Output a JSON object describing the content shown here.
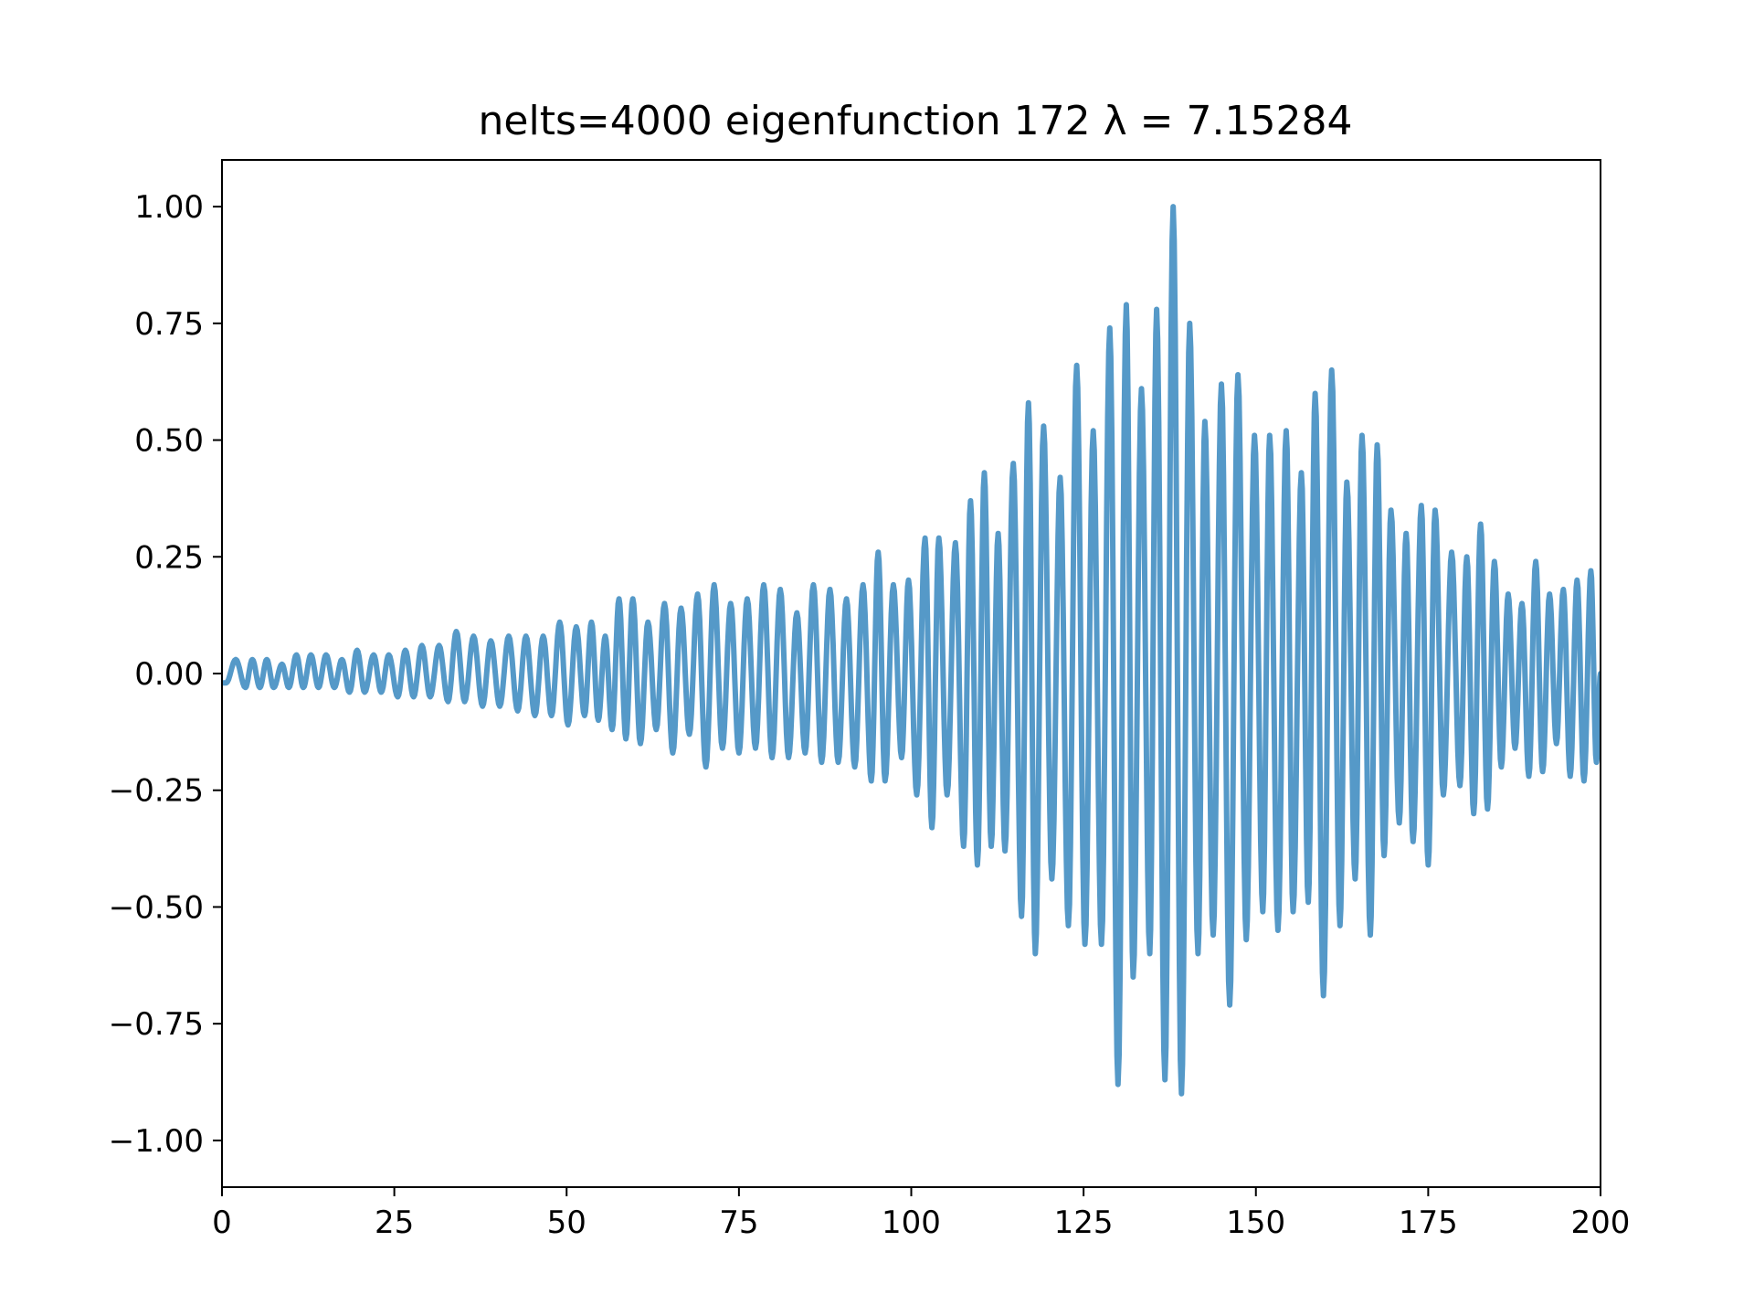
{
  "chart_data": {
    "type": "line",
    "title": "nelts=4000  eigenfunction 172  λ = 7.15284",
    "xlabel": "",
    "ylabel": "",
    "xlim": [
      0,
      200
    ],
    "ylim": [
      -1.1,
      1.1
    ],
    "grid": false,
    "line_color": "#5599c8",
    "xticks": [
      0,
      25,
      50,
      75,
      100,
      125,
      150,
      175,
      200
    ],
    "xtick_labels": [
      "0",
      "25",
      "50",
      "75",
      "100",
      "125",
      "150",
      "175",
      "200"
    ],
    "yticks": [
      1.0,
      0.75,
      0.5,
      0.25,
      0.0,
      -0.25,
      -0.5,
      -0.75,
      -1.0
    ],
    "ytick_labels": [
      "1.00",
      "0.75",
      "0.50",
      "0.25",
      "0.00",
      "−0.25",
      "−0.50",
      "−0.75",
      "−1.00"
    ],
    "peaks": [
      [
        0.0,
        -0.02
      ],
      [
        0.6,
        -0.02
      ],
      [
        2.0,
        0.03
      ],
      [
        3.4,
        -0.03
      ],
      [
        4.4,
        0.03
      ],
      [
        5.5,
        -0.03
      ],
      [
        6.5,
        0.03
      ],
      [
        7.5,
        -0.03
      ],
      [
        8.7,
        0.02
      ],
      [
        9.7,
        -0.03
      ],
      [
        10.8,
        0.04
      ],
      [
        11.8,
        -0.03
      ],
      [
        12.9,
        0.04
      ],
      [
        14.0,
        -0.03
      ],
      [
        15.1,
        0.04
      ],
      [
        16.3,
        -0.03
      ],
      [
        17.4,
        0.03
      ],
      [
        18.5,
        -0.04
      ],
      [
        19.6,
        0.05
      ],
      [
        20.7,
        -0.04
      ],
      [
        22.0,
        0.04
      ],
      [
        23.1,
        -0.04
      ],
      [
        24.2,
        0.04
      ],
      [
        25.5,
        -0.05
      ],
      [
        26.6,
        0.05
      ],
      [
        27.8,
        -0.05
      ],
      [
        29.0,
        0.06
      ],
      [
        30.2,
        -0.05
      ],
      [
        31.5,
        0.06
      ],
      [
        32.8,
        -0.06
      ],
      [
        34.0,
        0.09
      ],
      [
        35.2,
        -0.06
      ],
      [
        36.5,
        0.08
      ],
      [
        37.8,
        -0.07
      ],
      [
        39.0,
        0.07
      ],
      [
        40.3,
        -0.07
      ],
      [
        41.6,
        0.08
      ],
      [
        42.9,
        -0.08
      ],
      [
        44.1,
        0.08
      ],
      [
        45.4,
        -0.09
      ],
      [
        46.6,
        0.08
      ],
      [
        47.8,
        -0.09
      ],
      [
        49.0,
        0.11
      ],
      [
        50.2,
        -0.11
      ],
      [
        51.4,
        0.1
      ],
      [
        52.6,
        -0.09
      ],
      [
        53.6,
        0.11
      ],
      [
        54.6,
        -0.1
      ],
      [
        55.6,
        0.08
      ],
      [
        56.6,
        -0.12
      ],
      [
        57.6,
        0.16
      ],
      [
        58.6,
        -0.14
      ],
      [
        59.6,
        0.16
      ],
      [
        60.7,
        -0.15
      ],
      [
        61.8,
        0.11
      ],
      [
        63.0,
        -0.12
      ],
      [
        64.2,
        0.15
      ],
      [
        65.4,
        -0.17
      ],
      [
        66.6,
        0.14
      ],
      [
        67.8,
        -0.13
      ],
      [
        69.0,
        0.17
      ],
      [
        70.2,
        -0.2
      ],
      [
        71.4,
        0.19
      ],
      [
        72.6,
        -0.16
      ],
      [
        73.8,
        0.15
      ],
      [
        75.0,
        -0.17
      ],
      [
        76.2,
        0.16
      ],
      [
        77.4,
        -0.16
      ],
      [
        78.6,
        0.19
      ],
      [
        79.8,
        -0.18
      ],
      [
        81.0,
        0.18
      ],
      [
        82.2,
        -0.18
      ],
      [
        83.4,
        0.13
      ],
      [
        84.6,
        -0.17
      ],
      [
        85.8,
        0.19
      ],
      [
        87.0,
        -0.19
      ],
      [
        88.2,
        0.18
      ],
      [
        89.4,
        -0.19
      ],
      [
        90.6,
        0.16
      ],
      [
        91.8,
        -0.2
      ],
      [
        93.0,
        0.19
      ],
      [
        94.2,
        -0.23
      ],
      [
        95.2,
        0.26
      ],
      [
        96.2,
        -0.23
      ],
      [
        97.4,
        0.19
      ],
      [
        98.6,
        -0.18
      ],
      [
        99.6,
        0.2
      ],
      [
        100.8,
        -0.26
      ],
      [
        102.0,
        0.29
      ],
      [
        103.0,
        -0.33
      ],
      [
        104.0,
        0.29
      ],
      [
        105.2,
        -0.26
      ],
      [
        106.4,
        0.28
      ],
      [
        107.6,
        -0.37
      ],
      [
        108.6,
        0.37
      ],
      [
        109.6,
        -0.41
      ],
      [
        110.6,
        0.43
      ],
      [
        111.6,
        -0.37
      ],
      [
        112.6,
        0.3
      ],
      [
        113.6,
        -0.38
      ],
      [
        114.8,
        0.45
      ],
      [
        116.0,
        -0.52
      ],
      [
        117.0,
        0.58
      ],
      [
        118.0,
        -0.6
      ],
      [
        119.2,
        0.53
      ],
      [
        120.4,
        -0.44
      ],
      [
        121.6,
        0.42
      ],
      [
        122.8,
        -0.54
      ],
      [
        124.0,
        0.66
      ],
      [
        125.2,
        -0.58
      ],
      [
        126.4,
        0.52
      ],
      [
        127.6,
        -0.58
      ],
      [
        128.8,
        0.74
      ],
      [
        130.0,
        -0.88
      ],
      [
        131.2,
        0.79
      ],
      [
        132.2,
        -0.65
      ],
      [
        133.4,
        0.61
      ],
      [
        134.6,
        -0.6
      ],
      [
        135.6,
        0.78
      ],
      [
        136.8,
        -0.87
      ],
      [
        138.0,
        1.0
      ],
      [
        139.2,
        -0.9
      ],
      [
        140.4,
        0.75
      ],
      [
        141.6,
        -0.6
      ],
      [
        142.6,
        0.54
      ],
      [
        143.8,
        -0.56
      ],
      [
        145.0,
        0.62
      ],
      [
        146.2,
        -0.71
      ],
      [
        147.4,
        0.64
      ],
      [
        148.6,
        -0.57
      ],
      [
        149.8,
        0.51
      ],
      [
        151.0,
        -0.51
      ],
      [
        152.0,
        0.51
      ],
      [
        153.2,
        -0.55
      ],
      [
        154.4,
        0.52
      ],
      [
        155.4,
        -0.51
      ],
      [
        156.6,
        0.43
      ],
      [
        157.6,
        -0.49
      ],
      [
        158.6,
        0.6
      ],
      [
        159.8,
        -0.69
      ],
      [
        161.0,
        0.65
      ],
      [
        162.2,
        -0.54
      ],
      [
        163.2,
        0.41
      ],
      [
        164.4,
        -0.44
      ],
      [
        165.4,
        0.51
      ],
      [
        166.6,
        -0.56
      ],
      [
        167.6,
        0.49
      ],
      [
        168.6,
        -0.39
      ],
      [
        169.6,
        0.35
      ],
      [
        170.8,
        -0.32
      ],
      [
        171.8,
        0.3
      ],
      [
        172.8,
        -0.36
      ],
      [
        174.0,
        0.36
      ],
      [
        175.0,
        -0.41
      ],
      [
        176.0,
        0.35
      ],
      [
        177.2,
        -0.26
      ],
      [
        178.4,
        0.26
      ],
      [
        179.6,
        -0.24
      ],
      [
        180.6,
        0.25
      ],
      [
        181.6,
        -0.3
      ],
      [
        182.6,
        0.32
      ],
      [
        183.6,
        -0.29
      ],
      [
        184.6,
        0.24
      ],
      [
        185.6,
        -0.2
      ],
      [
        186.6,
        0.17
      ],
      [
        187.6,
        -0.16
      ],
      [
        188.6,
        0.15
      ],
      [
        189.6,
        -0.22
      ],
      [
        190.6,
        0.24
      ],
      [
        191.6,
        -0.21
      ],
      [
        192.6,
        0.17
      ],
      [
        193.6,
        -0.15
      ],
      [
        194.6,
        0.18
      ],
      [
        195.6,
        -0.22
      ],
      [
        196.6,
        0.2
      ],
      [
        197.6,
        -0.23
      ],
      [
        198.6,
        0.22
      ],
      [
        199.4,
        -0.19
      ],
      [
        200.0,
        0.0
      ]
    ]
  }
}
